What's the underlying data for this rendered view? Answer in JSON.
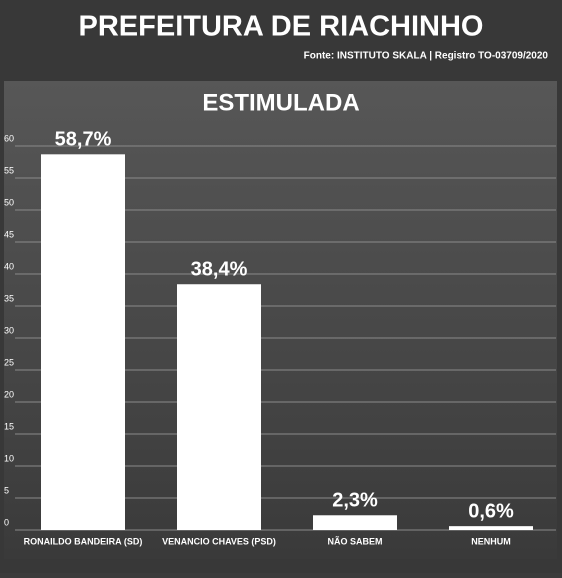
{
  "header": {
    "title": "PREFEITURA DE RIACHINHO",
    "subtitle": "Fonte: INSTITUTO SKALA | Registro TO-03709/2020"
  },
  "chart_data": {
    "type": "bar",
    "title": "ESTIMULADA",
    "categories": [
      "RONAILDO BANDEIRA (SD)",
      "VENANCIO CHAVES (PSD)",
      "NÃO SABEM",
      "NENHUM"
    ],
    "values": [
      58.7,
      38.4,
      2.3,
      0.6
    ],
    "value_labels": [
      "58,7%",
      "38,4%",
      "2,3%",
      "0,6%"
    ],
    "color": "#ffffff",
    "ylim": [
      0,
      60
    ],
    "yticks": [
      0,
      5,
      10,
      15,
      20,
      25,
      30,
      35,
      40,
      45,
      50,
      55,
      60
    ],
    "grid": true
  }
}
